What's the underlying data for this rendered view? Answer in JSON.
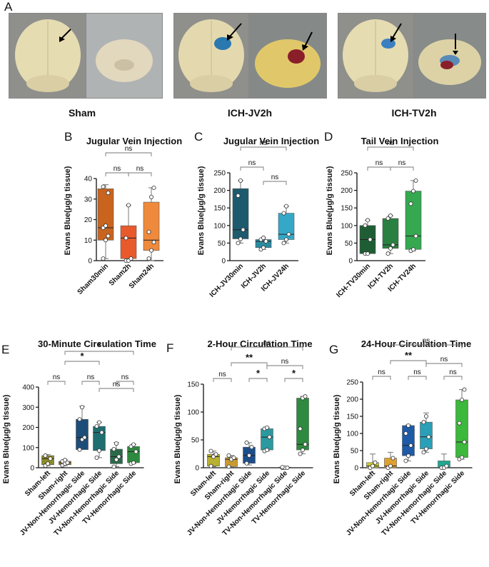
{
  "panel_a": {
    "letter": "A",
    "groups": [
      {
        "caption": "Sham"
      },
      {
        "caption": "ICH-JV2h"
      },
      {
        "caption": "ICH-TV2h"
      }
    ]
  },
  "chart_data": [
    {
      "letter": "B",
      "type": "box",
      "title": "Jugular Vein Injection",
      "ylabel": "Evans Blue(μg/g tissue)",
      "ylim": [
        0,
        40
      ],
      "yticks": [
        0,
        10,
        20,
        30,
        40
      ],
      "categories": [
        "Sham30min",
        "Sham2h",
        "Sham24h"
      ],
      "boxes": [
        {
          "min": 1,
          "q1": 10,
          "median": 16,
          "q3": 35,
          "max": 37,
          "points": [
            1,
            10,
            12,
            16,
            17,
            33,
            36
          ],
          "color": "#c8641e"
        },
        {
          "min": 0,
          "q1": 1,
          "median": 11,
          "q3": 17,
          "max": 27,
          "points": [
            0,
            0,
            1,
            11,
            27
          ],
          "color": "#e85a2c"
        },
        {
          "min": 0,
          "q1": 5,
          "median": 10,
          "q3": 28.5,
          "max": 35.5,
          "points": [
            1,
            5,
            9,
            14,
            31,
            35.5
          ],
          "color": "#ef8a3c"
        }
      ],
      "sig": [
        {
          "from": 0,
          "to": 1,
          "label": "ns"
        },
        {
          "from": 1,
          "to": 2,
          "label": "ns"
        },
        {
          "from": 0,
          "to": 2,
          "label": "ns"
        }
      ]
    },
    {
      "letter": "C",
      "type": "box",
      "title": "Jugular Vein Injection",
      "ylabel": "Evans Blue(μg/g tissue)",
      "ylim": [
        0,
        250
      ],
      "yticks": [
        0,
        50,
        100,
        150,
        200,
        250
      ],
      "categories": [
        "ICH-JV30min",
        "ICH-JV2h",
        "ICH-JV24h"
      ],
      "boxes": [
        {
          "min": 50,
          "q1": 62,
          "median": 88,
          "q3": 205,
          "max": 228,
          "points": [
            50,
            62,
            88,
            185,
            228
          ],
          "color": "#1d5a6e"
        },
        {
          "min": 32,
          "q1": 37,
          "median": 55,
          "q3": 60,
          "max": 65,
          "points": [
            32,
            37,
            55,
            60,
            65
          ],
          "color": "#2a8aa0"
        },
        {
          "min": 50,
          "q1": 60,
          "median": 75,
          "q3": 135,
          "max": 155,
          "points": [
            50,
            60,
            75,
            135,
            155
          ],
          "color": "#35a8c8"
        }
      ],
      "sig": [
        {
          "from": 0,
          "to": 1,
          "label": "ns"
        },
        {
          "from": 1,
          "to": 2,
          "label": "ns"
        },
        {
          "from": 0,
          "to": 2,
          "label": "ns"
        }
      ]
    },
    {
      "letter": "D",
      "type": "box",
      "title": "Tail Vein Injection",
      "ylabel": "Evans Blue(μg/g tissue)",
      "ylim": [
        0,
        250
      ],
      "yticks": [
        0,
        50,
        100,
        150,
        200,
        250
      ],
      "categories": [
        "ICH-TV30min",
        "ICH-TV2h",
        "ICH-TV24h"
      ],
      "boxes": [
        {
          "min": 20,
          "q1": 20,
          "median": 60,
          "q3": 100,
          "max": 115,
          "points": [
            20,
            20,
            60,
            100,
            115
          ],
          "color": "#1f5e34"
        },
        {
          "min": 20,
          "q1": 35,
          "median": 45,
          "q3": 120,
          "max": 128,
          "points": [
            20,
            35,
            45,
            120,
            128
          ],
          "color": "#2a8040"
        },
        {
          "min": 28,
          "q1": 32,
          "median": 70,
          "q3": 198,
          "max": 228,
          "points": [
            28,
            32,
            70,
            162,
            198,
            228
          ],
          "color": "#35a850"
        }
      ],
      "sig": [
        {
          "from": 0,
          "to": 1,
          "label": "ns"
        },
        {
          "from": 1,
          "to": 2,
          "label": "ns"
        },
        {
          "from": 0,
          "to": 2,
          "label": "ns"
        }
      ]
    },
    {
      "letter": "E",
      "type": "box",
      "title": "30-Minute Circulation Time",
      "ylabel": "Evans Blue(μg/g tissue)",
      "ylim": [
        0,
        400
      ],
      "yticks": [
        0,
        100,
        200,
        300,
        400
      ],
      "categories": [
        "Sham-left",
        "Sham-right",
        "JV-Non-Hemorrhagic Side",
        "JV-Hemorrhagic Side",
        "TV-Non-Hemorrhagic Side",
        "TV-Hemorrhagic Side"
      ],
      "boxes": [
        {
          "min": 10,
          "q1": 15,
          "median": 45,
          "q3": 60,
          "max": 65,
          "points": [
            10,
            20,
            45,
            60
          ],
          "color": "#8c8c2a"
        },
        {
          "min": 10,
          "q1": 15,
          "median": 25,
          "q3": 32,
          "max": 40,
          "points": [
            12,
            20,
            25,
            32,
            38
          ],
          "color": "#a67c2a"
        },
        {
          "min": 90,
          "q1": 90,
          "median": 150,
          "q3": 240,
          "max": 305,
          "points": [
            90,
            140,
            150,
            240,
            300
          ],
          "color": "#1d4e7a"
        },
        {
          "min": 50,
          "q1": 85,
          "median": 175,
          "q3": 205,
          "max": 225,
          "points": [
            50,
            85,
            175,
            205,
            225
          ],
          "color": "#1f6e70"
        },
        {
          "min": 5,
          "q1": 20,
          "median": 55,
          "q3": 92,
          "max": 125,
          "points": [
            5,
            40,
            55,
            92,
            120
          ],
          "color": "#2a6a4a"
        },
        {
          "min": 20,
          "q1": 25,
          "median": 80,
          "q3": 105,
          "max": 115,
          "points": [
            20,
            25,
            80,
            105,
            115
          ],
          "color": "#2e8a3e"
        }
      ],
      "sig": [
        {
          "from": 0,
          "to": 1,
          "label": "ns"
        },
        {
          "from": 4,
          "to": 5,
          "label": "ns"
        },
        {
          "from": 2,
          "to": 3,
          "label": "ns"
        },
        {
          "from": 1,
          "to": 3,
          "label": "*"
        },
        {
          "from": 3,
          "to": 5,
          "label": "ns"
        },
        {
          "from": 1,
          "to": 5,
          "label": "*"
        }
      ]
    },
    {
      "letter": "F",
      "type": "box",
      "title": "2-Hour Circulation Time",
      "ylabel": "Evans Blue(μg/g tissue)",
      "ylim": [
        0,
        150
      ],
      "yticks": [
        0,
        50,
        100,
        150
      ],
      "categories": [
        "Sham-left",
        "Sham-right",
        "JV-Non-Hemorrhagic Side",
        "JV-Hemorrhagic Side",
        "TV-Non-Hemorrhagic Side",
        "TV-Hemorrhagic Side"
      ],
      "boxes": [
        {
          "min": 2,
          "q1": 3,
          "median": 20,
          "q3": 24,
          "max": 30,
          "points": [
            3,
            20,
            24,
            30
          ],
          "color": "#b8b030"
        },
        {
          "min": 1,
          "q1": 2,
          "median": 15,
          "q3": 18,
          "max": 22,
          "points": [
            2,
            15,
            18,
            22
          ],
          "color": "#c89a30"
        },
        {
          "min": 5,
          "q1": 8,
          "median": 22,
          "q3": 37,
          "max": 45,
          "points": [
            8,
            22,
            37,
            45
          ],
          "color": "#1d4e8a"
        },
        {
          "min": 30,
          "q1": 32,
          "median": 55,
          "q3": 70,
          "max": 72,
          "points": [
            30,
            32,
            55,
            70,
            72
          ],
          "color": "#2a9aa0"
        },
        {
          "min": 0,
          "q1": 0,
          "median": 0,
          "q3": 1,
          "max": 1,
          "points": [
            0,
            0,
            0,
            1
          ],
          "color": "#2a7a50"
        },
        {
          "min": 25,
          "q1": 32,
          "median": 42,
          "q3": 125,
          "max": 128,
          "points": [
            25,
            32,
            42,
            70,
            125,
            128
          ],
          "color": "#2e8a3e"
        }
      ],
      "sig": [
        {
          "from": 0,
          "to": 1,
          "label": "ns"
        },
        {
          "from": 2,
          "to": 3,
          "label": "*"
        },
        {
          "from": 1,
          "to": 3,
          "label": "**"
        },
        {
          "from": 4,
          "to": 5,
          "label": "*"
        },
        {
          "from": 3,
          "to": 5,
          "label": "ns"
        },
        {
          "from": 1,
          "to": 5,
          "label": "ns"
        }
      ]
    },
    {
      "letter": "G",
      "type": "box",
      "title": "24-Hour Circulation Time",
      "ylabel": "Evans Blue(μg/g tissue)",
      "ylim": [
        0,
        250
      ],
      "yticks": [
        0,
        50,
        100,
        150,
        200,
        250
      ],
      "categories": [
        "Sham-left",
        "Sham-right",
        "JV-Non-Hemorrhagic Side",
        "JV-Hemorrhagic Side",
        "TV-Non-Hemorrhagic Side",
        "TV-Hemorrhagic Side"
      ],
      "boxes": [
        {
          "min": 0,
          "q1": 0,
          "median": 5,
          "q3": 15,
          "max": 40,
          "points": [
            0,
            5,
            15
          ],
          "color": "#c8c830"
        },
        {
          "min": 0,
          "q1": 0,
          "median": 5,
          "q3": 28,
          "max": 45,
          "points": [
            0,
            5,
            28
          ],
          "color": "#e0a030"
        },
        {
          "min": 20,
          "q1": 35,
          "median": 65,
          "q3": 123,
          "max": 125,
          "points": [
            20,
            35,
            65,
            100,
            123
          ],
          "color": "#1d5aa8"
        },
        {
          "min": 45,
          "q1": 55,
          "median": 90,
          "q3": 133,
          "max": 160,
          "points": [
            45,
            55,
            90,
            133,
            150
          ],
          "color": "#2aa0b8"
        },
        {
          "min": 0,
          "q1": 0,
          "median": 0,
          "q3": 20,
          "max": 40,
          "points": [
            0,
            0,
            5
          ],
          "color": "#20a890"
        },
        {
          "min": 25,
          "q1": 30,
          "median": 75,
          "q3": 198,
          "max": 228,
          "points": [
            25,
            30,
            75,
            130,
            198,
            228
          ],
          "color": "#3cb83c"
        }
      ],
      "sig": [
        {
          "from": 0,
          "to": 1,
          "label": "ns"
        },
        {
          "from": 2,
          "to": 3,
          "label": "ns"
        },
        {
          "from": 1,
          "to": 3,
          "label": "**"
        },
        {
          "from": 4,
          "to": 5,
          "label": "ns"
        },
        {
          "from": 3,
          "to": 5,
          "label": "ns"
        },
        {
          "from": 1,
          "to": 5,
          "label": "ns"
        }
      ]
    }
  ]
}
